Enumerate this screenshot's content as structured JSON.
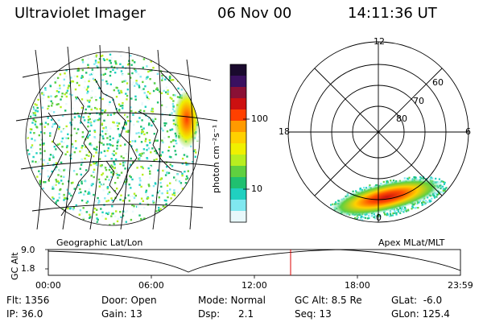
{
  "header": {
    "instrument": "Ultraviolet Imager",
    "date": "06 Nov 00",
    "time": "14:11:36 UT"
  },
  "colorbar": {
    "unit_label": "photon cm⁻²s⁻¹",
    "tick_labels": [
      "100",
      "10"
    ],
    "colors": [
      "#1a0a2e",
      "#3a1060",
      "#8a1035",
      "#cc1010",
      "#ff4000",
      "#ff9a00",
      "#ffd000",
      "#f0f000",
      "#b8ee20",
      "#60d040",
      "#20c070",
      "#20d0c0",
      "#80e8f0",
      "#e8f8fb"
    ]
  },
  "left_panel": {
    "caption": "Geographic Lat/Lon"
  },
  "right_panel": {
    "caption": "Apex MLat/MLT",
    "mlt_labels": {
      "top": "12",
      "left": "18",
      "right": "6",
      "bottom": "0"
    },
    "lat_labels": [
      "60",
      "70",
      "80"
    ]
  },
  "timeline": {
    "axis_label": "GC Alt",
    "y_labels": [
      "9.0",
      "1.8"
    ],
    "x_labels": [
      "00:00",
      "06:00",
      "12:00",
      "18:00",
      "23:59"
    ],
    "marker_color": "#dd0000"
  },
  "info": {
    "filter": "Flt: 1356",
    "ip": "IP: 36.0",
    "door": "Door: Open",
    "gain": "Gain: 13",
    "mode": "Mode: Normal",
    "dsp": "Dsp:",
    "dsp_value": "2.1",
    "gc_alt": "GC Alt: 8.5 Re",
    "seq": "Seq: 13",
    "glat": "GLat:  -6.0",
    "glon": "GLon: 125.4"
  }
}
